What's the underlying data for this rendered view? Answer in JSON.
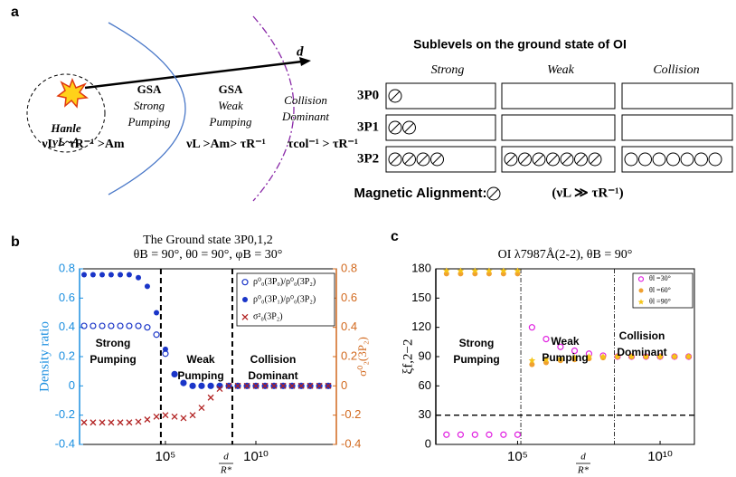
{
  "panel_a": {
    "label": "a",
    "arrow_label": "d",
    "hanle": "Hanle",
    "hanle_cond": "νL~A",
    "zones": [
      {
        "lines": [
          "GSA",
          "Strong",
          "Pumping"
        ],
        "condition": "νL > τR⁻¹ >Am"
      },
      {
        "lines": [
          "GSA",
          "Weak",
          "Pumping"
        ],
        "condition": "νL >Am> τR⁻¹"
      },
      {
        "lines": [
          "Collision",
          "Dominant"
        ],
        "condition": "τcol⁻¹ > τR⁻¹"
      }
    ],
    "table_title": "Sublevels on the ground state of OI",
    "rows": [
      "3P0",
      "3P1",
      "3P2"
    ],
    "columns": [
      {
        "head": "Strong",
        "counts": [
          1,
          2,
          4
        ],
        "aligned": true
      },
      {
        "head": "Weak",
        "counts": [
          0,
          0,
          7
        ],
        "aligned": true
      },
      {
        "head": "Collision",
        "counts": [
          0,
          0,
          7
        ],
        "aligned": false
      }
    ],
    "footer": "Magnetic Alignment:",
    "footer_cond": "(νL ≫ τR⁻¹)"
  },
  "chart_data": [
    {
      "type": "scatter",
      "panel": "b",
      "title": "The Ground state 3P0,1,2",
      "subtitle": "θB = 90°, θ0 = 90°, φB = 30°",
      "y_label": "Density ratio",
      "y2_label": "σ⁰₂(3P₂)",
      "x_label_num": "d",
      "x_label_den": "R*",
      "log_x": true,
      "xlim": [
        1.8,
        280000000000000.0
      ],
      "xticks": [
        {
          "value": 100000,
          "label": "10⁵"
        },
        {
          "value": 10000000000,
          "label": "10¹⁰"
        }
      ],
      "ylim": [
        -0.4,
        0.8
      ],
      "yticks": [
        -0.4,
        -0.2,
        0,
        0.2,
        0.4,
        0.6,
        0.8
      ],
      "y2lim": [
        -0.4,
        0.8
      ],
      "y2ticks": [
        -0.4,
        -0.2,
        0,
        0.2,
        0.4,
        0.6,
        0.8
      ],
      "y_color": "#1b8fe0",
      "y2_color": "#d2691e",
      "legend": "upper right",
      "vlines": [
        56000,
        500000000
      ],
      "annotations": [
        [
          "Strong",
          "Pumping"
        ],
        [
          "Weak",
          "Pumping"
        ],
        [
          "Collision",
          "Dominant"
        ]
      ],
      "x": [
        3.2,
        10,
        32,
        100,
        320,
        1000,
        3200,
        10000.0,
        32000.0,
        100000.0,
        320000.0,
        1000000.0,
        3200000.0,
        10000000.0,
        32000000.0,
        100000000.0,
        320000000.0,
        1000000000.0,
        3200000000.0,
        10000000000.0,
        32000000000.0,
        100000000000.0,
        320000000000.0,
        1000000000000.0,
        3200000000000.0,
        10000000000000.0,
        32000000000000.0,
        100000000000000.0
      ],
      "series": [
        {
          "name": "ρ⁰₀(3P₀)/ρ⁰₀(3P₂)",
          "color": "#1a35c8",
          "marker": "open-circle",
          "values": [
            0.41,
            0.41,
            0.41,
            0.41,
            0.41,
            0.41,
            0.41,
            0.4,
            0.35,
            0.22,
            0.08,
            0.02,
            0,
            0,
            0,
            0,
            0,
            0,
            0,
            0,
            0,
            0,
            0,
            0,
            0,
            0,
            0,
            0
          ]
        },
        {
          "name": "ρ⁰₀(3P₁)/ρ⁰₀(3P₂)",
          "color": "#1a35c8",
          "marker": "circle",
          "values": [
            0.76,
            0.76,
            0.76,
            0.76,
            0.76,
            0.76,
            0.74,
            0.68,
            0.5,
            0.25,
            0.08,
            0.02,
            0,
            0,
            0,
            0,
            0,
            0,
            0,
            0,
            0,
            0,
            0,
            0,
            0,
            0,
            0,
            0
          ]
        },
        {
          "name": "σ²₀(3P₂)",
          "color": "#b22222",
          "marker": "x",
          "axis": "y2",
          "values": [
            -0.25,
            -0.25,
            -0.25,
            -0.25,
            -0.25,
            -0.25,
            -0.245,
            -0.23,
            -0.21,
            -0.2,
            -0.21,
            -0.22,
            -0.2,
            -0.15,
            -0.08,
            -0.02,
            0,
            0,
            0,
            0,
            0,
            0,
            0,
            0,
            0,
            0,
            0,
            0
          ]
        }
      ]
    },
    {
      "type": "scatter",
      "panel": "c",
      "title": "OI λ7987Å(2-2), θB = 90°",
      "y_label": "ξf,2−2",
      "x_label_num": "d",
      "x_label_den": "R*",
      "log_x": true,
      "xlim": [
        135,
        160000000000.0
      ],
      "xticks": [
        {
          "value": 100000,
          "label": "10⁵"
        },
        {
          "value": 10000000000,
          "label": "10¹⁰"
        }
      ],
      "ylim": [
        0,
        180
      ],
      "yticks": [
        0,
        30,
        60,
        90,
        120,
        150,
        180
      ],
      "legend": "upper right",
      "vlines": [
        130000,
        250000000
      ],
      "hline": 30,
      "annotations": [
        [
          "Strong",
          "Pumping"
        ],
        [
          "Weak",
          "Pumping"
        ],
        [
          "Collision",
          "Dominant"
        ]
      ],
      "x": [
        320,
        1000,
        3200,
        10000.0,
        32000.0,
        100000.0,
        320000.0,
        1000000.0,
        3200000.0,
        10000000.0,
        32000000.0,
        100000000.0,
        320000000.0,
        1000000000.0,
        3200000000.0,
        10000000000.0,
        32000000000.0,
        100000000000.0
      ],
      "series": [
        {
          "name": "θl =30°",
          "color": "#e020e0",
          "marker": "open-circle",
          "values": [
            10,
            10,
            10,
            10,
            10,
            10,
            120,
            108,
            100,
            96,
            93,
            91,
            90,
            90,
            90,
            90,
            90,
            90
          ]
        },
        {
          "name": "θl =60°",
          "color": "#f0a030",
          "marker": "circle",
          "values": [
            175,
            175,
            175,
            175,
            175,
            175,
            82,
            84,
            86,
            87,
            88,
            89,
            90,
            90,
            90,
            90,
            90,
            90
          ]
        },
        {
          "name": "θl =90°",
          "color": "#f5c518",
          "marker": "star",
          "values": [
            178,
            178,
            178,
            178,
            178,
            178,
            86,
            87,
            88,
            89,
            90,
            90,
            90,
            90,
            90,
            90,
            90,
            90
          ]
        }
      ]
    }
  ]
}
